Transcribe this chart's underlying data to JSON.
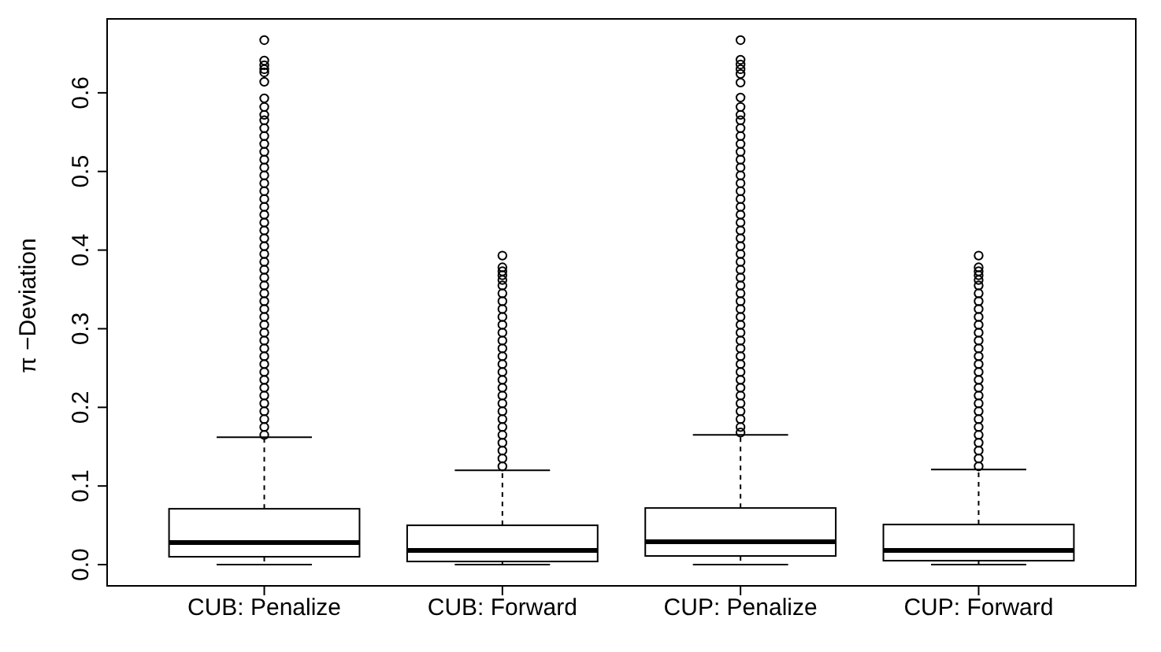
{
  "chart_data": {
    "type": "box",
    "ylabel": "π −Deviation",
    "categories": [
      "CUB: Penalize",
      "CUB: Forward",
      "CUP: Penalize",
      "CUP: Forward"
    ],
    "ylim": [
      -0.027,
      0.694
    ],
    "yticks": [
      {
        "value": 0,
        "label": "0.0"
      },
      0.1,
      0.2,
      0.3,
      0.4,
      0.5,
      0.6
    ],
    "grid": false,
    "legend": false,
    "boxes": [
      {
        "low": 0,
        "q1": 0.01,
        "median": 0.028,
        "q3": 0.071,
        "high": 0.162,
        "outliers": [
          0.667,
          0.641,
          0.635,
          0.63,
          0.626,
          0.614,
          0.593,
          0.582,
          0.572,
          0.565,
          0.555,
          0.545,
          0.535,
          0.525,
          0.515,
          0.505,
          0.495,
          0.485,
          0.475,
          0.465,
          0.455,
          0.445,
          0.435,
          0.425,
          0.415,
          0.405,
          0.395,
          0.385,
          0.375,
          0.365,
          0.355,
          0.345,
          0.335,
          0.325,
          0.315,
          0.305,
          0.295,
          0.285,
          0.275,
          0.265,
          0.255,
          0.245,
          0.235,
          0.225,
          0.215,
          0.205,
          0.195,
          0.185,
          0.175,
          0.165
        ]
      },
      {
        "low": 0,
        "q1": 0.004,
        "median": 0.018,
        "q3": 0.05,
        "high": 0.12,
        "outliers": [
          0.393,
          0.378,
          0.373,
          0.368,
          0.362,
          0.355,
          0.345,
          0.335,
          0.325,
          0.315,
          0.305,
          0.295,
          0.285,
          0.275,
          0.265,
          0.255,
          0.245,
          0.235,
          0.225,
          0.215,
          0.205,
          0.195,
          0.185,
          0.175,
          0.165,
          0.155,
          0.145,
          0.135,
          0.125
        ]
      },
      {
        "low": 0,
        "q1": 0.011,
        "median": 0.029,
        "q3": 0.072,
        "high": 0.165,
        "outliers": [
          0.667,
          0.642,
          0.636,
          0.63,
          0.624,
          0.613,
          0.594,
          0.582,
          0.572,
          0.565,
          0.555,
          0.545,
          0.535,
          0.525,
          0.515,
          0.505,
          0.495,
          0.485,
          0.475,
          0.465,
          0.455,
          0.445,
          0.435,
          0.425,
          0.415,
          0.405,
          0.395,
          0.385,
          0.375,
          0.365,
          0.355,
          0.345,
          0.335,
          0.325,
          0.315,
          0.305,
          0.295,
          0.285,
          0.275,
          0.265,
          0.255,
          0.245,
          0.235,
          0.225,
          0.215,
          0.205,
          0.195,
          0.185,
          0.175,
          0.168
        ]
      },
      {
        "low": 0,
        "q1": 0.005,
        "median": 0.018,
        "q3": 0.051,
        "high": 0.121,
        "outliers": [
          0.393,
          0.378,
          0.373,
          0.368,
          0.362,
          0.355,
          0.345,
          0.335,
          0.325,
          0.315,
          0.305,
          0.295,
          0.285,
          0.275,
          0.265,
          0.255,
          0.245,
          0.235,
          0.225,
          0.215,
          0.205,
          0.195,
          0.185,
          0.175,
          0.165,
          0.155,
          0.145,
          0.135,
          0.125
        ]
      }
    ]
  }
}
